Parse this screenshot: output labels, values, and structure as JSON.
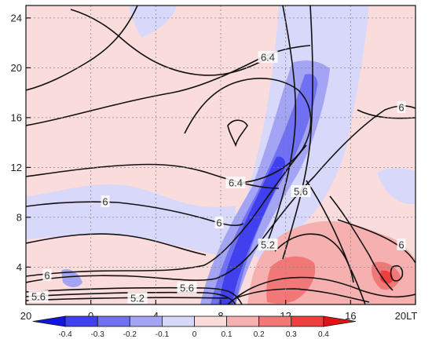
{
  "chart_data": {
    "type": "heatmap",
    "title": "",
    "xlabel": "",
    "ylabel": "",
    "x_ticks": [
      {
        "value": 20,
        "label": "20"
      },
      {
        "value": 24,
        "label": "0"
      },
      {
        "value": 28,
        "label": "4"
      },
      {
        "value": 32,
        "label": "8"
      },
      {
        "value": 36,
        "label": "12"
      },
      {
        "value": 40,
        "label": "16"
      },
      {
        "value": 44,
        "label": "20LT"
      }
    ],
    "xlim": [
      20,
      44
    ],
    "y_ticks": [
      "4",
      "8",
      "12",
      "16",
      "20",
      "24"
    ],
    "ylim": [
      1,
      25
    ],
    "grid": true,
    "colorbar": {
      "labels": [
        "-0.4",
        "-0.3",
        "-0.2",
        "-0.1",
        "0",
        "0.1",
        "0.2",
        "0.3",
        "0.4"
      ],
      "colors": [
        "#1414e0",
        "#4040ee",
        "#7070f2",
        "#a4a4f5",
        "#d8d8fa",
        "#fadcdc",
        "#f7b0b0",
        "#f27878",
        "#ec4040",
        "#e01414"
      ]
    },
    "contour_labels": [
      "6.4",
      "6",
      "6.4",
      "5.6",
      "6",
      "6",
      "5.2",
      "6",
      "6",
      "5.6",
      "5.6",
      "5.2"
    ],
    "contour_levels": [
      5.2,
      5.6,
      6.0,
      6.4
    ]
  }
}
